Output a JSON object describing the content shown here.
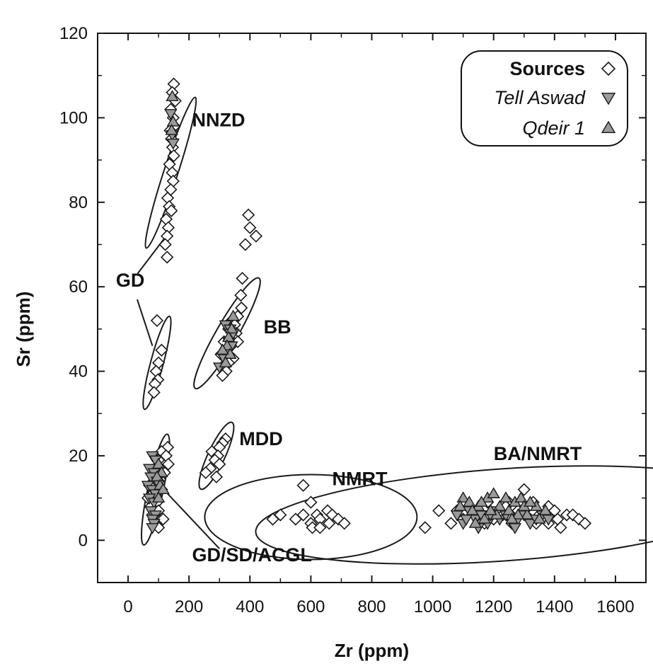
{
  "chart_data": {
    "type": "scatter",
    "xlabel": "Zr (ppm)",
    "ylabel": "Sr (ppm)",
    "xlim": [
      -100,
      1700
    ],
    "ylim": [
      -10,
      120
    ],
    "xticks": [
      0,
      200,
      400,
      600,
      800,
      1000,
      1200,
      1400,
      1600
    ],
    "yticks": [
      0,
      20,
      40,
      60,
      80,
      100,
      120
    ],
    "grid": false,
    "legend_position": "top-right",
    "colors": {
      "source_fill": "#ffffff",
      "artifact_fill": "#9a9a9a",
      "stroke": "#1a1a1a"
    },
    "legend": {
      "title": "Sources",
      "entries": [
        {
          "label": "Sources",
          "marker": "diamond-open"
        },
        {
          "label": "Tell Aswad",
          "marker": "triangle-down-grey"
        },
        {
          "label": "Qdeir 1",
          "marker": "triangle-up-grey"
        }
      ]
    },
    "groups": [
      {
        "name": "NNZD",
        "ellipse": {
          "cx": 140,
          "cy": 87,
          "rx": 112,
          "ry": 10,
          "angle": -72
        }
      },
      {
        "name": "GD",
        "ellipse": {
          "cx": 95,
          "cy": 42,
          "rx": 68,
          "ry": 9,
          "angle": -75
        }
      },
      {
        "name": "BB",
        "ellipse": {
          "cx": 325,
          "cy": 49,
          "rx": 90,
          "ry": 15,
          "angle": -60
        }
      },
      {
        "name": "MDD",
        "ellipse": {
          "cx": 290,
          "cy": 20,
          "rx": 52,
          "ry": 12,
          "angle": -65
        }
      },
      {
        "name": "GD/SD/ACGL",
        "ellipse": {
          "cx": 90,
          "cy": 12,
          "rx": 80,
          "ry": 11,
          "angle": -78
        }
      },
      {
        "name": "NMRT",
        "ellipse": {
          "cx": 600,
          "cy": 5.5,
          "rx": 150,
          "ry": 60,
          "angle": 0
        }
      },
      {
        "name": "BA/NMRT",
        "ellipse": {
          "cx": 1230,
          "cy": 6,
          "rx": 350,
          "ry": 65,
          "angle": -4
        }
      }
    ],
    "labels": [
      {
        "text": "NNZD",
        "x": 210,
        "y": 98
      },
      {
        "text": "GD",
        "x": -40,
        "y": 60
      },
      {
        "text": "BB",
        "x": 445,
        "y": 49
      },
      {
        "text": "MDD",
        "x": 365,
        "y": 22.5
      },
      {
        "text": "NMRT",
        "x": 670,
        "y": 13
      },
      {
        "text": "BA/NMRT",
        "x": 1200,
        "y": 19
      },
      {
        "text": "GD/SD/ACGL",
        "x": 210,
        "y": -5
      }
    ],
    "leader_lines": [
      {
        "from": [
          30,
          63
        ],
        "to": [
          125,
          72
        ]
      },
      {
        "from": [
          30,
          57
        ],
        "to": [
          80,
          46
        ]
      },
      {
        "from": [
          130,
          11
        ],
        "to": [
          300,
          -2
        ]
      }
    ],
    "series": [
      {
        "name": "Sources",
        "marker": "diamond-open",
        "points": [
          [
            150,
            108
          ],
          [
            145,
            106
          ],
          [
            155,
            104
          ],
          [
            140,
            102
          ],
          [
            148,
            100
          ],
          [
            152,
            98
          ],
          [
            138,
            97
          ],
          [
            142,
            95
          ],
          [
            146,
            93
          ],
          [
            150,
            91
          ],
          [
            136,
            89
          ],
          [
            145,
            87
          ],
          [
            148,
            85
          ],
          [
            140,
            83
          ],
          [
            130,
            81
          ],
          [
            135,
            79
          ],
          [
            142,
            78
          ],
          [
            125,
            76
          ],
          [
            132,
            74
          ],
          [
            128,
            72
          ],
          [
            122,
            70
          ],
          [
            128,
            67
          ],
          [
            95,
            52
          ],
          [
            110,
            45
          ],
          [
            100,
            42
          ],
          [
            92,
            40
          ],
          [
            98,
            38
          ],
          [
            88,
            37
          ],
          [
            85,
            35
          ],
          [
            395,
            77
          ],
          [
            400,
            74
          ],
          [
            420,
            72
          ],
          [
            385,
            70
          ],
          [
            375,
            62
          ],
          [
            370,
            58
          ],
          [
            372,
            55
          ],
          [
            360,
            53
          ],
          [
            340,
            52
          ],
          [
            350,
            51
          ],
          [
            330,
            50
          ],
          [
            355,
            49
          ],
          [
            345,
            48
          ],
          [
            315,
            47
          ],
          [
            360,
            47
          ],
          [
            338,
            46
          ],
          [
            325,
            45
          ],
          [
            305,
            44
          ],
          [
            345,
            43
          ],
          [
            330,
            42
          ],
          [
            315,
            41
          ],
          [
            322,
            40
          ],
          [
            310,
            39
          ],
          [
            320,
            24
          ],
          [
            310,
            23
          ],
          [
            300,
            22
          ],
          [
            275,
            21
          ],
          [
            295,
            20
          ],
          [
            285,
            19
          ],
          [
            300,
            18
          ],
          [
            270,
            17
          ],
          [
            255,
            16
          ],
          [
            290,
            15
          ],
          [
            130,
            22
          ],
          [
            110,
            21
          ],
          [
            125,
            20
          ],
          [
            100,
            19
          ],
          [
            132,
            18
          ],
          [
            90,
            17
          ],
          [
            120,
            16
          ],
          [
            85,
            15
          ],
          [
            100,
            14
          ],
          [
            70,
            13
          ],
          [
            110,
            12
          ],
          [
            80,
            11
          ],
          [
            65,
            10
          ],
          [
            95,
            9
          ],
          [
            75,
            8
          ],
          [
            100,
            7
          ],
          [
            80,
            6
          ],
          [
            115,
            5
          ],
          [
            90,
            4
          ],
          [
            100,
            3
          ],
          [
            575,
            13
          ],
          [
            600,
            9
          ],
          [
            655,
            7
          ],
          [
            500,
            6
          ],
          [
            575,
            6
          ],
          [
            620,
            6
          ],
          [
            670,
            6
          ],
          [
            550,
            5
          ],
          [
            630,
            5
          ],
          [
            690,
            5
          ],
          [
            710,
            4
          ],
          [
            475,
            5
          ],
          [
            600,
            4
          ],
          [
            660,
            4
          ],
          [
            605,
            3
          ],
          [
            630,
            3
          ],
          [
            975,
            3
          ],
          [
            1020,
            7
          ],
          [
            1300,
            12
          ],
          [
            1250,
            9
          ],
          [
            1330,
            9
          ],
          [
            1380,
            8
          ],
          [
            1400,
            7
          ],
          [
            1440,
            6
          ],
          [
            1460,
            6
          ],
          [
            1480,
            5
          ],
          [
            1500,
            4
          ],
          [
            1350,
            6
          ],
          [
            1320,
            5
          ],
          [
            1280,
            7
          ],
          [
            1230,
            6
          ],
          [
            1200,
            5
          ],
          [
            1170,
            4
          ],
          [
            1150,
            6
          ],
          [
            1120,
            8
          ],
          [
            1100,
            5
          ],
          [
            1080,
            7
          ],
          [
            1060,
            4
          ],
          [
            1260,
            4
          ],
          [
            1340,
            4
          ],
          [
            1410,
            5
          ],
          [
            1420,
            3
          ],
          [
            1380,
            4
          ],
          [
            1240,
            8
          ],
          [
            1180,
            9
          ]
        ]
      },
      {
        "name": "Tell Aswad",
        "marker": "triangle-down-grey",
        "points": [
          [
            140,
            101
          ],
          [
            145,
            96
          ],
          [
            148,
            94
          ],
          [
            320,
            51
          ],
          [
            335,
            50
          ],
          [
            345,
            49
          ],
          [
            330,
            47
          ],
          [
            325,
            45
          ],
          [
            315,
            43
          ],
          [
            300,
            41
          ],
          [
            340,
            46
          ],
          [
            80,
            20
          ],
          [
            90,
            19
          ],
          [
            70,
            17
          ],
          [
            85,
            16
          ],
          [
            75,
            15
          ],
          [
            95,
            14
          ],
          [
            65,
            13
          ],
          [
            80,
            12
          ],
          [
            90,
            11
          ],
          [
            70,
            10
          ],
          [
            85,
            9
          ],
          [
            75,
            7
          ],
          [
            90,
            6
          ],
          [
            80,
            5
          ],
          [
            85,
            4
          ],
          [
            80,
            3
          ],
          [
            1080,
            6
          ],
          [
            1100,
            4
          ],
          [
            1120,
            7
          ],
          [
            1140,
            5
          ],
          [
            1160,
            6
          ],
          [
            1180,
            4
          ],
          [
            1200,
            7
          ],
          [
            1220,
            5
          ],
          [
            1240,
            6
          ],
          [
            1260,
            4
          ],
          [
            1280,
            5
          ],
          [
            1300,
            6
          ],
          [
            1320,
            4
          ],
          [
            1340,
            5
          ],
          [
            1360,
            6
          ],
          [
            1380,
            5
          ],
          [
            1150,
            3
          ],
          [
            1270,
            3
          ],
          [
            1110,
            5
          ],
          [
            1190,
            6
          ]
        ]
      },
      {
        "name": "Qdeir 1",
        "marker": "triangle-up-grey",
        "points": [
          [
            145,
            105
          ],
          [
            148,
            99
          ],
          [
            143,
            97
          ],
          [
            340,
            50
          ],
          [
            330,
            48
          ],
          [
            325,
            46
          ],
          [
            335,
            44
          ],
          [
            320,
            42
          ],
          [
            310,
            45
          ],
          [
            345,
            53
          ],
          [
            100,
            18
          ],
          [
            110,
            16
          ],
          [
            95,
            15
          ],
          [
            105,
            13
          ],
          [
            115,
            12
          ],
          [
            100,
            10
          ],
          [
            1100,
            10
          ],
          [
            1120,
            9
          ],
          [
            1150,
            8
          ],
          [
            1180,
            10
          ],
          [
            1200,
            11
          ],
          [
            1220,
            8
          ],
          [
            1250,
            7
          ],
          [
            1270,
            9
          ],
          [
            1290,
            10
          ],
          [
            1310,
            6
          ],
          [
            1340,
            8
          ],
          [
            1370,
            7
          ],
          [
            1130,
            7
          ],
          [
            1160,
            9
          ],
          [
            1210,
            6
          ],
          [
            1240,
            10
          ],
          [
            1300,
            8
          ],
          [
            1350,
            5
          ],
          [
            1090,
            8
          ],
          [
            1170,
            5
          ],
          [
            1280,
            6
          ],
          [
            1320,
            9
          ],
          [
            1260,
            5
          ],
          [
            1140,
            4
          ],
          [
            1190,
            7
          ]
        ]
      }
    ]
  }
}
